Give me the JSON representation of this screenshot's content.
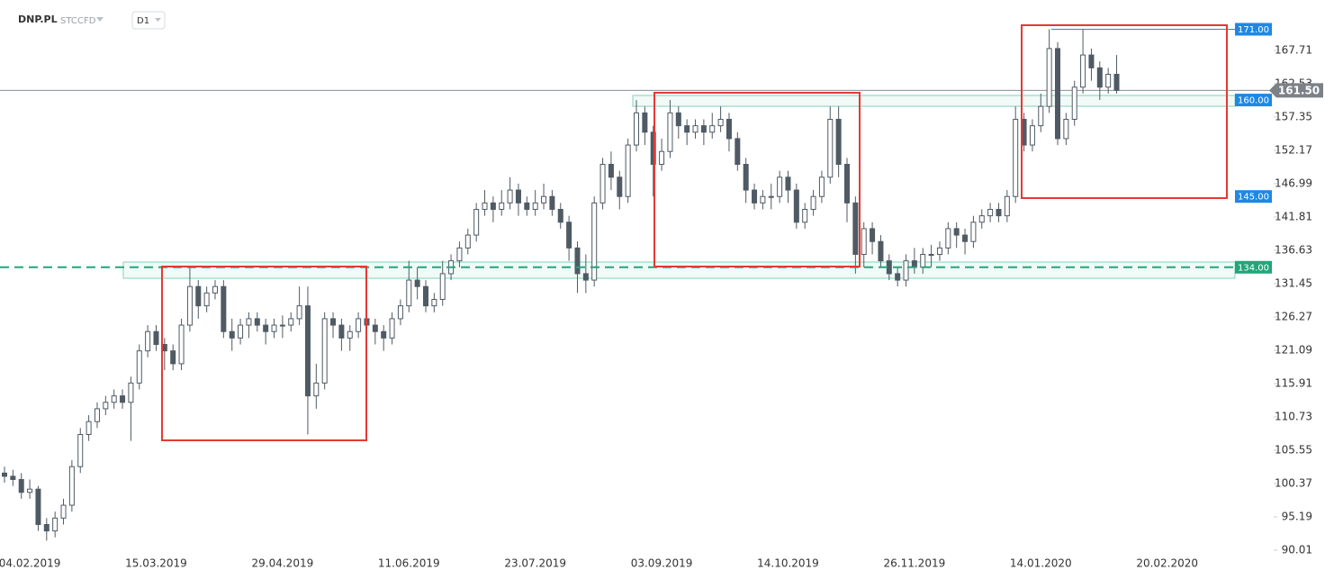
{
  "header": {
    "symbol": "DNP.PL",
    "tags": [
      "STC",
      "CFD"
    ],
    "interval": "D1"
  },
  "chart_data": {
    "type": "candlestick",
    "categories": [
      null,
      null,
      null,
      "04.02.2019",
      null,
      null,
      null,
      null,
      null,
      null,
      null,
      null,
      null,
      null,
      null,
      null,
      null,
      null,
      "15.03.2019",
      null,
      null,
      null,
      null,
      null,
      null,
      null,
      null,
      null,
      null,
      null,
      null,
      null,
      null,
      "29.04.2019",
      null,
      null,
      null,
      null,
      null,
      null,
      null,
      null,
      null,
      null,
      null,
      null,
      null,
      null,
      "11.06.2019",
      null,
      null,
      null,
      null,
      null,
      null,
      null,
      null,
      null,
      null,
      null,
      null,
      null,
      null,
      "23.07.2019",
      null,
      null,
      null,
      null,
      null,
      null,
      null,
      null,
      null,
      null,
      null,
      null,
      null,
      null,
      "03.09.2019",
      null,
      null,
      null,
      null,
      null,
      null,
      null,
      null,
      null,
      null,
      null,
      null,
      null,
      null,
      "14.10.2019",
      null,
      null,
      null,
      null,
      null,
      null,
      null,
      null,
      null,
      null,
      null,
      null,
      null,
      null,
      "26.11.2019",
      null,
      null,
      null,
      null,
      null,
      null,
      null,
      null,
      null,
      null,
      null,
      null,
      null,
      null,
      "14.01.2020",
      null,
      null,
      null,
      null,
      null,
      null,
      null,
      null,
      null,
      null,
      null,
      null,
      null,
      null,
      "20.02.2020",
      null,
      null,
      null,
      null,
      null,
      null,
      null,
      null,
      null,
      null,
      null,
      null
    ],
    "open": [
      102,
      101.5,
      101,
      99,
      99.5,
      94,
      93,
      95,
      97,
      103,
      108,
      110,
      112,
      113,
      114,
      113,
      116,
      121,
      124,
      122,
      121,
      119,
      125,
      131,
      128,
      130,
      131,
      124,
      123,
      125,
      126,
      125,
      124,
      125,
      125,
      126,
      128,
      114,
      116,
      126,
      125,
      123,
      124,
      126,
      125,
      124,
      123,
      126,
      128,
      132,
      131,
      128,
      129,
      133,
      135,
      137,
      139,
      143,
      144,
      143,
      144,
      146,
      144,
      143,
      144,
      145,
      143,
      141,
      137,
      133,
      132,
      144,
      150,
      148,
      145,
      153,
      158,
      155,
      150,
      152,
      158,
      156,
      155,
      156,
      155,
      156,
      157,
      154,
      150,
      146,
      144,
      145,
      145,
      148,
      146,
      141,
      143,
      145,
      148,
      157,
      150,
      144,
      136,
      140,
      138,
      135,
      133,
      132,
      135,
      134,
      136,
      136,
      137,
      140,
      139,
      138,
      141,
      142,
      143,
      142,
      145,
      157,
      153,
      156,
      159,
      168,
      154,
      157,
      162,
      167,
      165,
      162,
      164,
      null,
      null,
      null,
      null,
      null,
      null,
      null,
      null,
      null,
      null,
      null,
      null,
      null,
      null,
      null,
      null,
      null,
      null
    ],
    "high": [
      103,
      102.5,
      102,
      101,
      100,
      95,
      96,
      98,
      104,
      109,
      111,
      113,
      114,
      115,
      115,
      117,
      122,
      125,
      125,
      123,
      122,
      126,
      134,
      132,
      131,
      132,
      132,
      126,
      126,
      127,
      127,
      126,
      126,
      126.5,
      127,
      131,
      131,
      119,
      127,
      127,
      126,
      125,
      127,
      127,
      126,
      125,
      127,
      129,
      135,
      134,
      132,
      130,
      135,
      136,
      138,
      140,
      144,
      146,
      145,
      146,
      148,
      147,
      145,
      146,
      147,
      146,
      144,
      142,
      138,
      136,
      145,
      151,
      152,
      149,
      154,
      160,
      159,
      156,
      154,
      160,
      159,
      157,
      157,
      157,
      158,
      159,
      158,
      155,
      151,
      147,
      146,
      147,
      149,
      149,
      147,
      144,
      146,
      149,
      159,
      159,
      151,
      145,
      141,
      141,
      139,
      136,
      134,
      136,
      137,
      137,
      137.5,
      138,
      141,
      141,
      140,
      142,
      143,
      144,
      144,
      146,
      159,
      158,
      157,
      161,
      171,
      169,
      158,
      163,
      171,
      168,
      166,
      165,
      167,
      null,
      null,
      null,
      null,
      null,
      null,
      null,
      null,
      null,
      null,
      null,
      null,
      null,
      null,
      null,
      null,
      null,
      null
    ],
    "low": [
      100.5,
      100,
      98,
      98,
      93,
      91.5,
      92,
      94,
      96,
      102,
      107,
      109,
      111,
      112,
      112,
      107,
      115,
      120,
      121,
      118,
      118,
      118,
      124,
      126,
      127,
      129,
      123,
      121,
      122,
      123,
      124,
      122,
      123,
      123,
      124,
      125,
      108,
      112,
      115,
      123,
      121,
      121,
      123,
      124,
      122,
      121,
      122,
      125,
      127,
      129,
      127,
      127,
      128,
      132,
      134,
      136,
      138,
      142,
      141,
      142,
      143,
      142,
      142,
      142,
      143,
      142,
      140,
      135,
      130,
      130,
      131,
      143,
      146,
      143,
      144,
      152,
      153,
      145,
      149,
      151,
      154,
      153,
      154,
      153,
      154,
      155,
      152,
      149,
      144,
      143,
      143,
      143,
      144,
      144,
      140,
      140,
      142,
      144,
      147,
      148,
      141,
      133,
      134,
      136,
      134,
      132,
      131,
      131,
      133,
      133,
      134,
      135,
      136,
      137,
      136,
      137,
      140,
      141,
      141,
      141,
      144,
      152,
      152,
      155,
      158,
      153,
      153,
      156,
      161,
      163,
      160,
      161,
      161,
      null,
      null,
      null,
      null,
      null,
      null,
      null,
      null,
      null,
      null,
      null,
      null,
      null,
      null,
      null,
      null,
      null,
      null
    ],
    "close": [
      101.5,
      101,
      99,
      99.5,
      94,
      93,
      95,
      97,
      103,
      108,
      110,
      112,
      113,
      114,
      113,
      116,
      121,
      124,
      122,
      121,
      119,
      125,
      131,
      128,
      130,
      131,
      124,
      123,
      125,
      126,
      125,
      124,
      125,
      125,
      126,
      128,
      114,
      116,
      126,
      125,
      123,
      124,
      126,
      125,
      124,
      123,
      126,
      128,
      132,
      131,
      128,
      129,
      133,
      135,
      137,
      139,
      143,
      144,
      143,
      144,
      146,
      144,
      143,
      144,
      145,
      143,
      141,
      137,
      133,
      132,
      144,
      150,
      148,
      145,
      153,
      158,
      155,
      150,
      152,
      158,
      156,
      155,
      156,
      155,
      156,
      157,
      154,
      150,
      146,
      144,
      145,
      145,
      148,
      146,
      141,
      143,
      145,
      148,
      157,
      150,
      144,
      136,
      140,
      138,
      135,
      133,
      132,
      135,
      134,
      136,
      136,
      137,
      140,
      139,
      138,
      141,
      142,
      143,
      142,
      145,
      157,
      153,
      156,
      159,
      168,
      154,
      157,
      162,
      167,
      165,
      162,
      164,
      161.5,
      null,
      null,
      null,
      null,
      null,
      null,
      null,
      null,
      null,
      null,
      null,
      null,
      null,
      null,
      null,
      null,
      null,
      null
    ],
    "up_color": "#ffffff",
    "down_color": "#4f5a64",
    "ylim": [
      89.45,
      175.55
    ],
    "yticks": [
      90.01,
      95.19,
      100.37,
      105.55,
      110.73,
      115.91,
      121.09,
      126.27,
      131.45,
      136.63,
      141.81,
      146.99,
      152.17,
      157.35,
      162.53,
      167.71
    ],
    "levels": [
      {
        "value": 171,
        "label": "171.00",
        "color": "#1e88e5"
      },
      {
        "value": 160,
        "label": "160.00",
        "color": "#1e88e5"
      },
      {
        "value": 145,
        "label": "145.00",
        "color": "#1e88e5"
      },
      {
        "value": 134,
        "label": "134.00",
        "color": "#21a67a"
      }
    ],
    "last_price": {
      "value": 161.5,
      "label": "161.50"
    }
  }
}
